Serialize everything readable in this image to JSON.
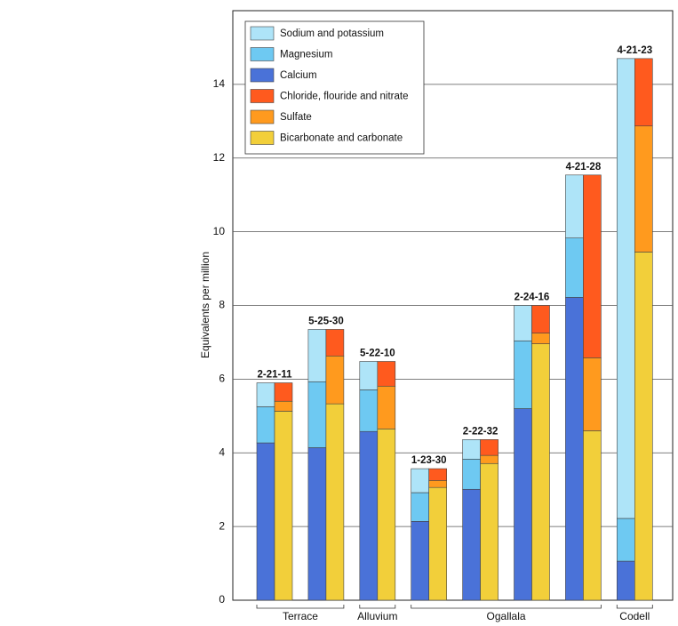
{
  "chart_data": {
    "type": "grouped-stacked-bar",
    "y_label": "Equivalents per million",
    "categories": [
      "2-21-11",
      "5-25-30",
      "5-22-10",
      "1-23-30",
      "2-22-32",
      "2-24-16",
      "4-21-28",
      "4-21-23"
    ],
    "groups": [
      "Terrace",
      "Terrace",
      "Alluvium",
      "Ogallala",
      "Ogallala",
      "Ogallala",
      "Ogallala",
      "Codell"
    ],
    "stacks": [
      [
        {
          "name": "Calcium",
          "color": "#4a72d8",
          "values": [
            4.27,
            4.14,
            4.58,
            2.14,
            3.01,
            5.2,
            8.22,
            1.06
          ]
        },
        {
          "name": "Magnesium",
          "color": "#6ec9f2",
          "values": [
            0.98,
            1.79,
            1.13,
            0.78,
            0.82,
            1.84,
            1.61,
            1.16
          ]
        },
        {
          "name": "Sodium and potassium",
          "color": "#aee4f8",
          "values": [
            0.65,
            1.42,
            0.77,
            0.65,
            0.53,
            0.96,
            1.71,
            12.48
          ]
        }
      ],
      [
        {
          "name": "Bicarbonate and carbonate",
          "color": "#f2cf3a",
          "values": [
            5.13,
            5.33,
            4.65,
            3.06,
            3.71,
            6.96,
            4.6,
            9.45
          ]
        },
        {
          "name": "Sulfate",
          "color": "#ff9a1e",
          "values": [
            0.27,
            1.3,
            1.16,
            0.19,
            0.22,
            0.29,
            1.98,
            3.42
          ]
        },
        {
          "name": "Chloride, flouride and nitrate",
          "color": "#ff5a1e",
          "values": [
            0.5,
            0.72,
            0.67,
            0.32,
            0.43,
            0.75,
            4.96,
            1.83
          ]
        }
      ]
    ],
    "ylim": [
      0,
      16
    ],
    "yticks": [
      0,
      2,
      4,
      6,
      8,
      10,
      12,
      14
    ],
    "grid": true
  }
}
